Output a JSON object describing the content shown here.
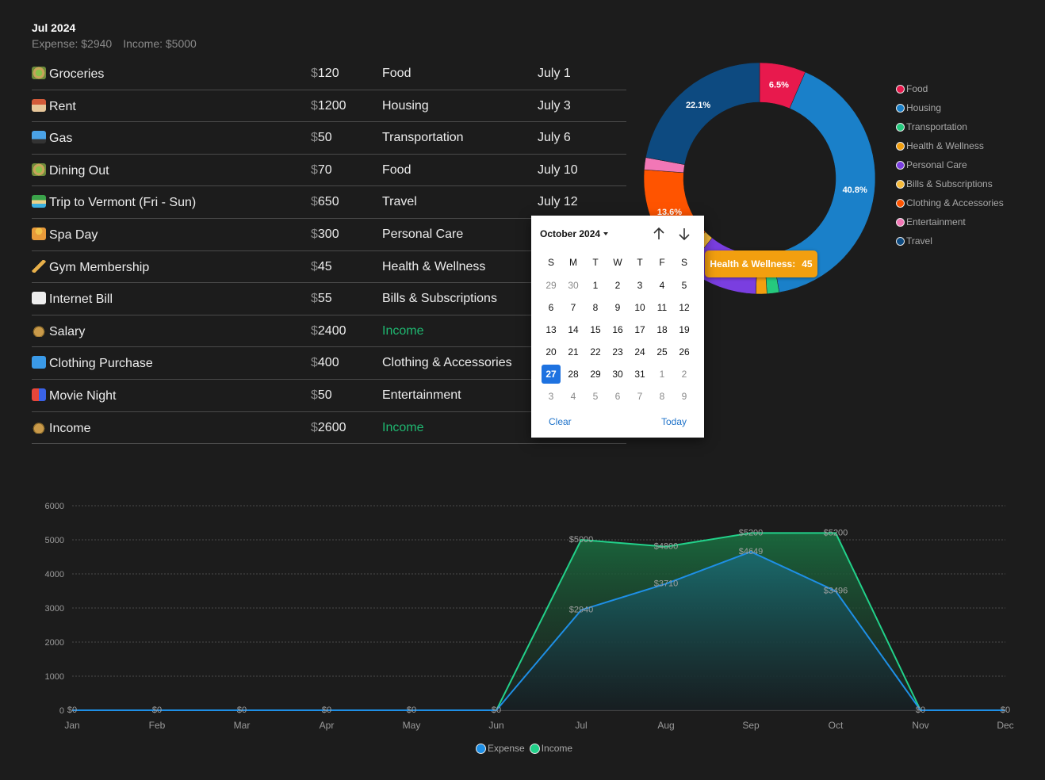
{
  "header": {
    "month": "Jul 2024",
    "expense_label": "Expense: $2940",
    "income_label": "Income: $5000"
  },
  "transactions": [
    {
      "icon": "salad-icon",
      "name": "Groceries",
      "currency": "$",
      "amount": "120",
      "category": "Food",
      "date": "July 1",
      "is_income": false
    },
    {
      "icon": "house-icon",
      "name": "Rent",
      "currency": "$",
      "amount": "1200",
      "category": "Housing",
      "date": "July 3",
      "is_income": false
    },
    {
      "icon": "car-icon",
      "name": "Gas",
      "currency": "$",
      "amount": "50",
      "category": "Transportation",
      "date": "July 6",
      "is_income": false
    },
    {
      "icon": "salad-icon",
      "name": "Dining Out",
      "currency": "$",
      "amount": "70",
      "category": "Food",
      "date": "July 10",
      "is_income": false
    },
    {
      "icon": "island-icon",
      "name": "Trip to Vermont (Fri - Sun)",
      "currency": "$",
      "amount": "650",
      "category": "Travel",
      "date": "July 12",
      "is_income": false
    },
    {
      "icon": "spa-person-icon",
      "name": "Spa Day",
      "currency": "$",
      "amount": "300",
      "category": "Personal Care",
      "date": "",
      "is_income": false
    },
    {
      "icon": "gymnast-icon",
      "name": "Gym Membership",
      "currency": "$",
      "amount": "45",
      "category": "Health & Wellness",
      "date": "",
      "is_income": false
    },
    {
      "icon": "receipt-icon",
      "name": "Internet Bill",
      "currency": "$",
      "amount": "55",
      "category": "Bills & Subscriptions",
      "date": "",
      "is_income": false
    },
    {
      "icon": "money-bag-icon",
      "name": "Salary",
      "currency": "$",
      "amount": "2400",
      "category": "Income",
      "date": "",
      "is_income": true
    },
    {
      "icon": "tshirt-icon",
      "name": "Clothing Purchase",
      "currency": "$",
      "amount": "400",
      "category": "Clothing & Accessories",
      "date": "",
      "is_income": false
    },
    {
      "icon": "theater-icon",
      "name": "Movie Night",
      "currency": "$",
      "amount": "50",
      "category": "Entertainment",
      "date": "",
      "is_income": false
    },
    {
      "icon": "money-bag-icon",
      "name": "Income",
      "currency": "$",
      "amount": "2600",
      "category": "Income",
      "date": "",
      "is_income": true
    }
  ],
  "tooltip": {
    "label": "Health & Wellness:",
    "value": "45",
    "color": "#f29f0f"
  },
  "datepicker": {
    "month_label": "October 2024",
    "weekdays": [
      "S",
      "M",
      "T",
      "W",
      "T",
      "F",
      "S"
    ],
    "days": [
      [
        "29",
        "30",
        "1",
        "2",
        "3",
        "4",
        "5"
      ],
      [
        "6",
        "7",
        "8",
        "9",
        "10",
        "11",
        "12"
      ],
      [
        "13",
        "14",
        "15",
        "16",
        "17",
        "18",
        "19"
      ],
      [
        "20",
        "21",
        "22",
        "23",
        "24",
        "25",
        "26"
      ],
      [
        "27",
        "28",
        "29",
        "30",
        "31",
        "1",
        "2"
      ],
      [
        "3",
        "4",
        "5",
        "6",
        "7",
        "8",
        "9"
      ]
    ],
    "other_month": [
      [
        true,
        true,
        false,
        false,
        false,
        false,
        false
      ],
      [
        false,
        false,
        false,
        false,
        false,
        false,
        false
      ],
      [
        false,
        false,
        false,
        false,
        false,
        false,
        false
      ],
      [
        false,
        false,
        false,
        false,
        false,
        false,
        false
      ],
      [
        false,
        false,
        false,
        false,
        false,
        true,
        true
      ],
      [
        true,
        true,
        true,
        true,
        true,
        true,
        true
      ]
    ],
    "selected": "27",
    "clear_label": "Clear",
    "today_label": "Today"
  },
  "chart_data": [
    {
      "type": "pie",
      "variant": "doughnut",
      "categories": [
        "Food",
        "Housing",
        "Transportation",
        "Health & Wellness",
        "Personal Care",
        "Bills & Subscriptions",
        "Clothing & Accessories",
        "Entertainment",
        "Travel"
      ],
      "values": [
        190,
        1200,
        50,
        45,
        300,
        55,
        400,
        50,
        650
      ],
      "colors": [
        "#e8194d",
        "#1a80c9",
        "#25c97e",
        "#f29f0f",
        "#7a3ee0",
        "#f7bb3a",
        "#ff5400",
        "#f277b6",
        "#0d4a80"
      ],
      "slice_labels": [
        "6.5%",
        "40.8%",
        "",
        "",
        "",
        "",
        "13.6%",
        "",
        "22.1%"
      ],
      "legend_position": "right"
    },
    {
      "type": "area",
      "categories": [
        "Jan",
        "Feb",
        "Mar",
        "Apr",
        "May",
        "Jun",
        "Jul",
        "Aug",
        "Sep",
        "Oct",
        "Nov",
        "Dec"
      ],
      "series": [
        {
          "name": "Expense",
          "values": [
            0,
            0,
            0,
            0,
            0,
            0,
            2940,
            3710,
            4649,
            3496,
            0,
            0
          ],
          "color": "#1e8fe6"
        },
        {
          "name": "Income",
          "values": [
            0,
            0,
            0,
            0,
            0,
            0,
            5000,
            4800,
            5200,
            5200,
            0,
            0
          ],
          "color": "#22d18a"
        }
      ],
      "point_labels": {
        "Expense": [
          "$0",
          "$0",
          "$0",
          "$0",
          "$0",
          "$0",
          "$2940",
          "$3710",
          "$4649",
          "$3496",
          "$0",
          "$0"
        ],
        "Income": [
          "",
          "",
          "",
          "",
          "",
          "",
          "$5000",
          "$4800",
          "$5200",
          "$5200",
          "",
          ""
        ]
      },
      "yticks": [
        "0",
        "1000",
        "2000",
        "3000",
        "4000",
        "5000",
        "6000"
      ],
      "ylim": [
        0,
        6000
      ],
      "grid": true,
      "legend_position": "bottom"
    }
  ]
}
